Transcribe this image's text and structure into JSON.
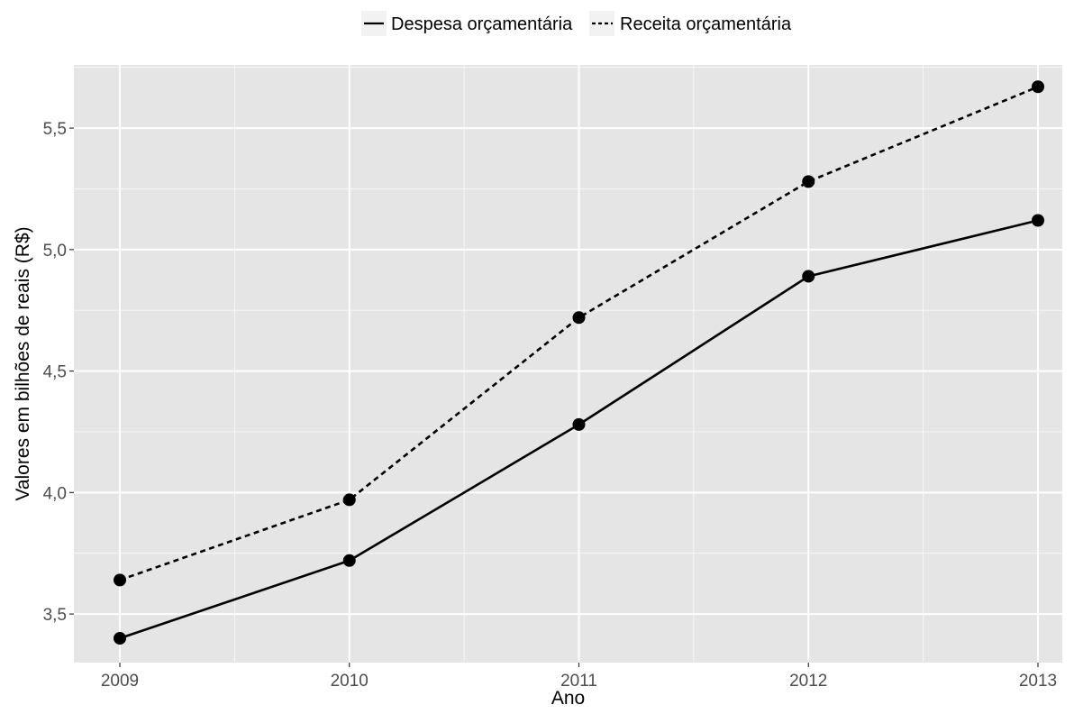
{
  "chart_data": {
    "type": "line",
    "title": "",
    "xlabel": "Ano",
    "ylabel": "Valores em bilhões de reais (R$)",
    "categories": [
      "2009",
      "2010",
      "2011",
      "2012",
      "2013"
    ],
    "ylim": [
      3.3,
      5.76
    ],
    "y_ticks": [
      3.5,
      4.0,
      4.5,
      5.0,
      5.5
    ],
    "y_tick_labels": [
      "3,5",
      "4,0",
      "4,5",
      "5,0",
      "5,5"
    ],
    "grid": true,
    "legend_position": "top",
    "series": [
      {
        "name": "Despesa orçamentária",
        "line_style": "solid",
        "values": [
          3.4,
          3.72,
          4.28,
          4.89,
          5.12
        ]
      },
      {
        "name": "Receita orçamentária",
        "line_style": "dashed",
        "values": [
          3.64,
          3.97,
          4.72,
          5.28,
          5.67
        ]
      }
    ],
    "colors": {
      "panel_background": "#e5e5e5",
      "grid": "#ffffff",
      "line": "#000000",
      "text": "#4d4d4d",
      "title_text": "#000000"
    }
  }
}
